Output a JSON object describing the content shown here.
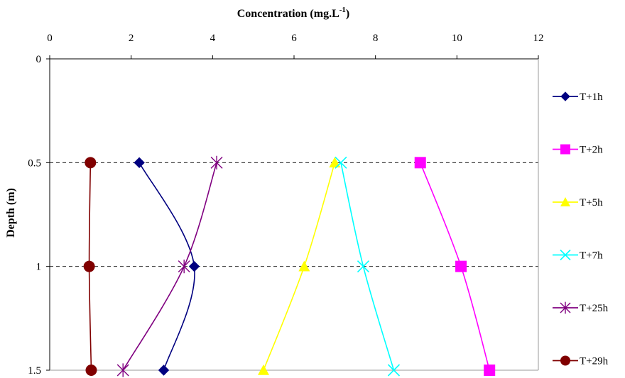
{
  "chart_data": {
    "type": "line",
    "orientation": "depth-profile",
    "xlabel": "Concentration (mg.L",
    "xlabel_sup": "-1",
    "xlabel_suffix": ")",
    "ylabel": "Depth (m)",
    "xlim": [
      0,
      12
    ],
    "ylim": [
      0,
      1.5
    ],
    "y_inverted": true,
    "x_axis_position": "top",
    "x_ticks": [
      "0",
      "2",
      "4",
      "6",
      "8",
      "10",
      "12"
    ],
    "y_ticks": [
      "0",
      "0.5",
      "1",
      "1.5"
    ],
    "gridlines": "dashed horizontal at 0.5 and 1",
    "legend_position": "right",
    "series": [
      {
        "name": "T+1h",
        "color": "#000080",
        "marker": "diamond",
        "x": [
          2.2,
          3.55,
          2.8
        ],
        "y": [
          0.5,
          1,
          1.5
        ]
      },
      {
        "name": "T+2h",
        "color": "#ff00ff",
        "marker": "square",
        "x": [
          9.1,
          10.1,
          10.8
        ],
        "y": [
          0.5,
          1,
          1.5
        ]
      },
      {
        "name": "T+5h",
        "color": "#ffff00",
        "marker": "triangle",
        "x": [
          7.0,
          6.25,
          5.25
        ],
        "y": [
          0.5,
          1,
          1.5
        ]
      },
      {
        "name": "T+7h",
        "color": "#00ffff",
        "marker": "x",
        "x": [
          7.15,
          7.7,
          8.45
        ],
        "y": [
          0.5,
          1,
          1.5
        ]
      },
      {
        "name": "T+25h",
        "color": "#800080",
        "marker": "asterisk",
        "x": [
          4.1,
          3.3,
          1.8
        ],
        "y": [
          0.5,
          1,
          1.5
        ]
      },
      {
        "name": "T+29h",
        "color": "#800000",
        "marker": "circle",
        "x": [
          1.0,
          0.97,
          1.02
        ],
        "y": [
          0.5,
          1,
          1.5
        ]
      }
    ]
  }
}
